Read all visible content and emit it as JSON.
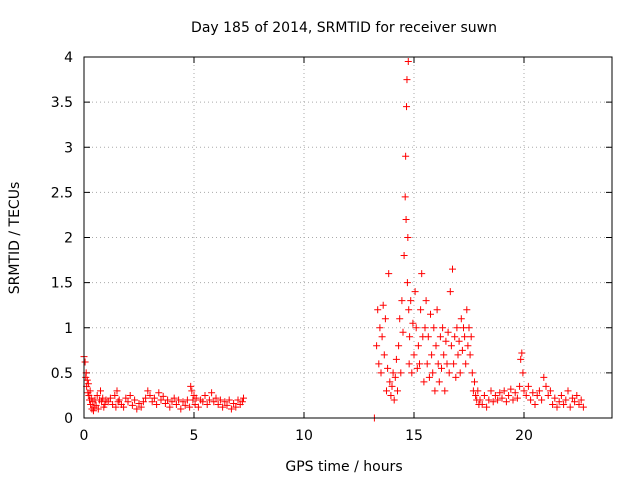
{
  "chart_data": {
    "type": "scatter",
    "title": "Day 185 of 2014, SRMTID for receiver suwn",
    "xlabel": "GPS time / hours",
    "ylabel": "SRMTID / TECUs",
    "xlim": [
      0,
      24
    ],
    "ylim": [
      0,
      4
    ],
    "xticks": [
      0,
      5,
      10,
      15,
      20
    ],
    "xtick_labels": [
      "0",
      "5",
      "10",
      "15",
      "20"
    ],
    "yticks": [
      0,
      0.5,
      1,
      1.5,
      2,
      2.5,
      3,
      3.5,
      4
    ],
    "ytick_labels": [
      "0",
      "0.5",
      "1",
      "1.5",
      "2",
      "2.5",
      "3",
      "3.5",
      "4"
    ],
    "grid": true,
    "marker": "plus",
    "color": "#ff0000",
    "series": [
      {
        "name": "SRMTID",
        "points": [
          [
            0.0,
            0.68
          ],
          [
            0.05,
            0.62
          ],
          [
            0.08,
            0.45
          ],
          [
            0.1,
            0.5
          ],
          [
            0.12,
            0.35
          ],
          [
            0.15,
            0.42
          ],
          [
            0.18,
            0.28
          ],
          [
            0.2,
            0.38
          ],
          [
            0.22,
            0.25
          ],
          [
            0.25,
            0.2
          ],
          [
            0.28,
            0.3
          ],
          [
            0.3,
            0.15
          ],
          [
            0.33,
            0.22
          ],
          [
            0.36,
            0.1
          ],
          [
            0.4,
            0.18
          ],
          [
            0.43,
            0.08
          ],
          [
            0.46,
            0.12
          ],
          [
            0.5,
            0.2
          ],
          [
            0.55,
            0.14
          ],
          [
            0.6,
            0.25
          ],
          [
            0.65,
            0.1
          ],
          [
            0.7,
            0.2
          ],
          [
            0.75,
            0.3
          ],
          [
            0.8,
            0.18
          ],
          [
            0.85,
            0.22
          ],
          [
            0.9,
            0.12
          ],
          [
            0.95,
            0.15
          ],
          [
            1.0,
            0.2
          ],
          [
            1.1,
            0.18
          ],
          [
            1.2,
            0.22
          ],
          [
            1.3,
            0.15
          ],
          [
            1.4,
            0.25
          ],
          [
            1.45,
            0.12
          ],
          [
            1.5,
            0.3
          ],
          [
            1.55,
            0.18
          ],
          [
            1.6,
            0.2
          ],
          [
            1.7,
            0.15
          ],
          [
            1.8,
            0.12
          ],
          [
            1.9,
            0.22
          ],
          [
            2.0,
            0.18
          ],
          [
            2.1,
            0.25
          ],
          [
            2.2,
            0.14
          ],
          [
            2.3,
            0.2
          ],
          [
            2.4,
            0.1
          ],
          [
            2.5,
            0.16
          ],
          [
            2.6,
            0.12
          ],
          [
            2.7,
            0.18
          ],
          [
            2.8,
            0.22
          ],
          [
            2.9,
            0.3
          ],
          [
            3.0,
            0.25
          ],
          [
            3.1,
            0.18
          ],
          [
            3.2,
            0.22
          ],
          [
            3.3,
            0.15
          ],
          [
            3.4,
            0.28
          ],
          [
            3.5,
            0.2
          ],
          [
            3.6,
            0.24
          ],
          [
            3.7,
            0.16
          ],
          [
            3.8,
            0.2
          ],
          [
            3.9,
            0.12
          ],
          [
            4.0,
            0.18
          ],
          [
            4.1,
            0.22
          ],
          [
            4.2,
            0.15
          ],
          [
            4.3,
            0.2
          ],
          [
            4.4,
            0.1
          ],
          [
            4.5,
            0.18
          ],
          [
            4.6,
            0.14
          ],
          [
            4.7,
            0.2
          ],
          [
            4.8,
            0.12
          ],
          [
            4.85,
            0.35
          ],
          [
            4.9,
            0.3
          ],
          [
            4.95,
            0.2
          ],
          [
            5.0,
            0.25
          ],
          [
            5.05,
            0.15
          ],
          [
            5.1,
            0.22
          ],
          [
            5.2,
            0.12
          ],
          [
            5.3,
            0.2
          ],
          [
            5.4,
            0.18
          ],
          [
            5.5,
            0.25
          ],
          [
            5.6,
            0.15
          ],
          [
            5.7,
            0.2
          ],
          [
            5.8,
            0.28
          ],
          [
            5.9,
            0.18
          ],
          [
            6.0,
            0.22
          ],
          [
            6.1,
            0.15
          ],
          [
            6.2,
            0.2
          ],
          [
            6.3,
            0.12
          ],
          [
            6.4,
            0.18
          ],
          [
            6.5,
            0.14
          ],
          [
            6.6,
            0.2
          ],
          [
            6.7,
            0.1
          ],
          [
            6.8,
            0.16
          ],
          [
            6.9,
            0.12
          ],
          [
            7.0,
            0.2
          ],
          [
            7.1,
            0.15
          ],
          [
            7.2,
            0.18
          ],
          [
            7.25,
            0.22
          ],
          [
            13.2,
            0.0
          ],
          [
            13.3,
            0.8
          ],
          [
            13.35,
            1.2
          ],
          [
            13.4,
            0.6
          ],
          [
            13.45,
            1.0
          ],
          [
            13.5,
            0.5
          ],
          [
            13.55,
            0.9
          ],
          [
            13.6,
            1.25
          ],
          [
            13.65,
            0.7
          ],
          [
            13.7,
            1.1
          ],
          [
            13.75,
            0.3
          ],
          [
            13.8,
            0.55
          ],
          [
            13.85,
            1.6
          ],
          [
            13.9,
            0.4
          ],
          [
            13.95,
            0.25
          ],
          [
            14.0,
            0.35
          ],
          [
            14.05,
            0.5
          ],
          [
            14.1,
            0.2
          ],
          [
            14.15,
            0.45
          ],
          [
            14.2,
            0.65
          ],
          [
            14.25,
            0.3
          ],
          [
            14.3,
            0.8
          ],
          [
            14.35,
            1.1
          ],
          [
            14.4,
            0.5
          ],
          [
            14.45,
            1.3
          ],
          [
            14.5,
            0.95
          ],
          [
            14.55,
            1.8
          ],
          [
            14.6,
            2.45
          ],
          [
            14.62,
            2.9
          ],
          [
            14.64,
            2.2
          ],
          [
            14.66,
            3.45
          ],
          [
            14.68,
            3.75
          ],
          [
            14.7,
            1.5
          ],
          [
            14.72,
            2.0
          ],
          [
            14.74,
            3.95
          ],
          [
            14.76,
            1.2
          ],
          [
            14.78,
            0.6
          ],
          [
            14.8,
            0.9
          ],
          [
            14.85,
            1.3
          ],
          [
            14.9,
            0.5
          ],
          [
            14.95,
            1.05
          ],
          [
            15.0,
            0.7
          ],
          [
            15.05,
            1.4
          ],
          [
            15.1,
            1.0
          ],
          [
            15.15,
            0.55
          ],
          [
            15.2,
            0.8
          ],
          [
            15.25,
            0.6
          ],
          [
            15.3,
            1.2
          ],
          [
            15.35,
            1.6
          ],
          [
            15.4,
            0.9
          ],
          [
            15.45,
            0.4
          ],
          [
            15.5,
            1.0
          ],
          [
            15.55,
            1.3
          ],
          [
            15.6,
            0.6
          ],
          [
            15.65,
            0.9
          ],
          [
            15.7,
            0.45
          ],
          [
            15.75,
            1.15
          ],
          [
            15.8,
            0.7
          ],
          [
            15.85,
            0.5
          ],
          [
            15.9,
            1.0
          ],
          [
            15.95,
            0.3
          ],
          [
            16.0,
            0.8
          ],
          [
            16.05,
            1.2
          ],
          [
            16.1,
            0.6
          ],
          [
            16.15,
            0.4
          ],
          [
            16.2,
            0.9
          ],
          [
            16.25,
            0.55
          ],
          [
            16.3,
            1.0
          ],
          [
            16.35,
            0.7
          ],
          [
            16.4,
            0.3
          ],
          [
            16.45,
            0.85
          ],
          [
            16.5,
            0.6
          ],
          [
            16.55,
            0.95
          ],
          [
            16.6,
            0.5
          ],
          [
            16.65,
            1.4
          ],
          [
            16.7,
            0.8
          ],
          [
            16.75,
            1.65
          ],
          [
            16.8,
            0.6
          ],
          [
            16.85,
            0.9
          ],
          [
            16.9,
            0.45
          ],
          [
            16.95,
            1.0
          ],
          [
            17.0,
            0.7
          ],
          [
            17.05,
            0.85
          ],
          [
            17.1,
            0.5
          ],
          [
            17.15,
            1.1
          ],
          [
            17.2,
            0.75
          ],
          [
            17.25,
            1.0
          ],
          [
            17.3,
            0.9
          ],
          [
            17.35,
            0.6
          ],
          [
            17.4,
            1.2
          ],
          [
            17.45,
            0.8
          ],
          [
            17.5,
            1.0
          ],
          [
            17.55,
            0.7
          ],
          [
            17.6,
            0.9
          ],
          [
            17.65,
            0.5
          ],
          [
            17.7,
            0.3
          ],
          [
            17.75,
            0.4
          ],
          [
            17.8,
            0.25
          ],
          [
            17.85,
            0.2
          ],
          [
            17.9,
            0.3
          ],
          [
            17.95,
            0.15
          ],
          [
            18.0,
            0.2
          ],
          [
            18.1,
            0.15
          ],
          [
            18.2,
            0.25
          ],
          [
            18.3,
            0.12
          ],
          [
            18.4,
            0.2
          ],
          [
            18.5,
            0.3
          ],
          [
            18.6,
            0.18
          ],
          [
            18.7,
            0.25
          ],
          [
            18.8,
            0.2
          ],
          [
            18.9,
            0.28
          ],
          [
            19.0,
            0.22
          ],
          [
            19.1,
            0.3
          ],
          [
            19.2,
            0.18
          ],
          [
            19.3,
            0.25
          ],
          [
            19.4,
            0.32
          ],
          [
            19.5,
            0.2
          ],
          [
            19.6,
            0.28
          ],
          [
            19.7,
            0.22
          ],
          [
            19.8,
            0.35
          ],
          [
            19.85,
            0.65
          ],
          [
            19.9,
            0.72
          ],
          [
            19.95,
            0.5
          ],
          [
            20.0,
            0.3
          ],
          [
            20.1,
            0.25
          ],
          [
            20.2,
            0.35
          ],
          [
            20.3,
            0.2
          ],
          [
            20.4,
            0.28
          ],
          [
            20.5,
            0.15
          ],
          [
            20.6,
            0.25
          ],
          [
            20.7,
            0.3
          ],
          [
            20.8,
            0.2
          ],
          [
            20.9,
            0.45
          ],
          [
            21.0,
            0.35
          ],
          [
            21.1,
            0.25
          ],
          [
            21.2,
            0.3
          ],
          [
            21.3,
            0.15
          ],
          [
            21.4,
            0.22
          ],
          [
            21.5,
            0.12
          ],
          [
            21.6,
            0.18
          ],
          [
            21.7,
            0.25
          ],
          [
            21.8,
            0.15
          ],
          [
            21.9,
            0.2
          ],
          [
            22.0,
            0.3
          ],
          [
            22.1,
            0.12
          ],
          [
            22.2,
            0.22
          ],
          [
            22.3,
            0.18
          ],
          [
            22.4,
            0.25
          ],
          [
            22.5,
            0.15
          ],
          [
            22.6,
            0.2
          ],
          [
            22.7,
            0.12
          ]
        ]
      }
    ]
  }
}
